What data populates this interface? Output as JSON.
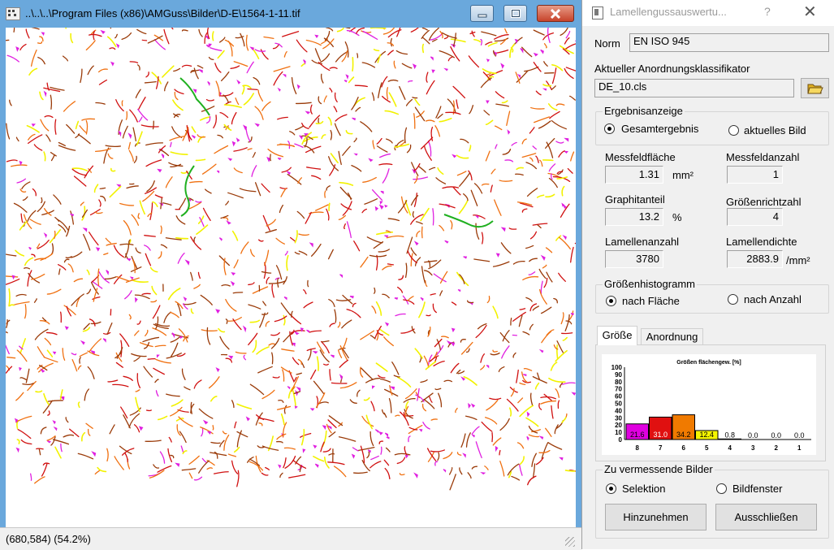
{
  "image_window": {
    "title": "..\\..\\..\\Program Files (x86)\\AMGuss\\Bilder\\D-E\\1564-1-11.tif",
    "status": "(680,584)  (54.2%)",
    "buttons": {
      "minimize": "minimize-icon",
      "maximize": "maximize-icon",
      "close": "close-icon"
    },
    "graphite_colors": {
      "purple": "#e020e0",
      "red": "#d01010",
      "orange": "#f07010",
      "brown": "#9a3a08",
      "yellow": "#f2f200",
      "green": "#20b020",
      "gray": "#808080"
    }
  },
  "dialog": {
    "title": "Lamellengussauswertu...",
    "help": "?",
    "close": "✕",
    "norm_label": "Norm",
    "norm_value": "EN ISO 945",
    "classifier_label": "Aktueller Anordnungsklassifikator",
    "classifier_value": "DE_10.cls",
    "result_group": {
      "title": "Ergebnisanzeige",
      "option1": "Gesamtergebnis",
      "option2": "aktuelles Bild",
      "selected": "Gesamtergebnis"
    },
    "measures": {
      "messfeldflaeche_label": "Messfeldfläche",
      "messfeldflaeche_value": "1.31",
      "messfeldflaeche_unit": "mm²",
      "messfeldanzahl_label": "Messfeldanzahl",
      "messfeldanzahl_value": "1",
      "graphitanteil_label": "Graphitanteil",
      "graphitanteil_value": "13.2",
      "graphitanteil_unit": "%",
      "groessenrichtzahl_label": "Größenrichtzahl",
      "groessenrichtzahl_value": "4",
      "lamellenanzahl_label": "Lamellenanzahl",
      "lamellenanzahl_value": "3780",
      "lamellendichte_label": "Lamellendichte",
      "lamellendichte_value": "2883.9",
      "lamellendichte_unit": "/mm²"
    },
    "histogram_group": {
      "title": "Größenhistogramm",
      "option1": "nach Fläche",
      "option2": "nach Anzahl",
      "selected": "nach Fläche"
    },
    "tabs": {
      "tab1": "Größe",
      "tab2": "Anordnung",
      "active": "Größe"
    },
    "images_group": {
      "title": "Zu vermessende Bilder",
      "option1": "Selektion",
      "option2": "Bildfenster",
      "selected": "Selektion"
    },
    "buttons": {
      "add": "Hinzunehmen",
      "exclude": "Ausschließen"
    }
  },
  "chart_data": {
    "type": "bar",
    "title": "Größen flächengew. [%]",
    "categories": [
      "8",
      "7",
      "6",
      "5",
      "4",
      "3",
      "2",
      "1"
    ],
    "values": [
      21.6,
      31.0,
      34.2,
      12.4,
      0.8,
      0.0,
      0.0,
      0.0
    ],
    "value_labels": [
      "21.6",
      "31.0",
      "34.2",
      "12.4",
      "0.8",
      "0.0",
      "0.0",
      "0.0"
    ],
    "colors": [
      "#e000e0",
      "#e01010",
      "#f07a00",
      "#f5f500",
      "#ffffff",
      "#ffffff",
      "#ffffff",
      "#ffffff"
    ],
    "ylim": [
      0,
      100
    ],
    "yticks": [
      "100",
      "90",
      "80",
      "70",
      "60",
      "50",
      "40",
      "30",
      "20",
      "10",
      "0"
    ],
    "grid": false,
    "xlabel": "",
    "ylabel": ""
  }
}
